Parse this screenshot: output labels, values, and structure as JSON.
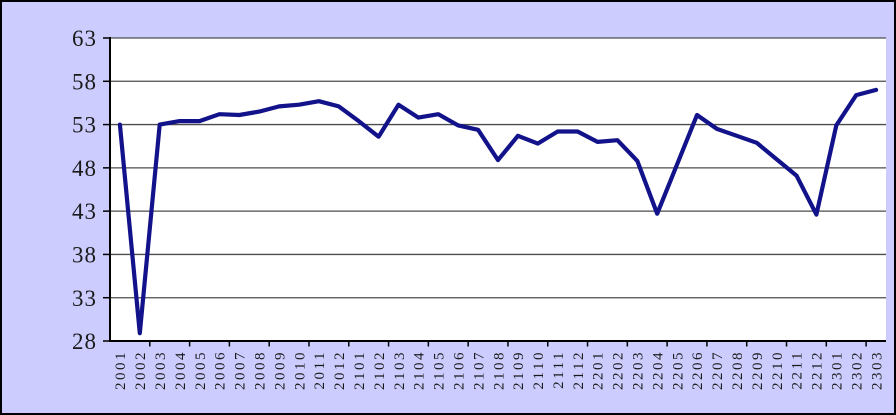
{
  "frame": {
    "background_color": "#CCCCFF",
    "border_color": "#000000"
  },
  "chart_data": {
    "type": "line",
    "title": "",
    "xlabel": "",
    "ylabel": "",
    "categories": [
      "2001",
      "2002",
      "2003",
      "2004",
      "2005",
      "2006",
      "2007",
      "2008",
      "2009",
      "2010",
      "2011",
      "2012",
      "2101",
      "2102",
      "2103",
      "2104",
      "2105",
      "2106",
      "2107",
      "2108",
      "2109",
      "2110",
      "2111",
      "2112",
      "2201",
      "2202",
      "2203",
      "2204",
      "2205",
      "2206",
      "2207",
      "2208",
      "2209",
      "2210",
      "2211",
      "2212",
      "2301",
      "2302",
      "2303"
    ],
    "values": [
      53.0,
      28.9,
      53.0,
      53.4,
      53.4,
      54.2,
      54.1,
      54.5,
      55.1,
      55.3,
      55.7,
      55.1,
      53.4,
      51.6,
      55.3,
      53.8,
      54.2,
      52.9,
      52.4,
      48.9,
      51.7,
      50.8,
      52.2,
      52.2,
      51.0,
      51.2,
      48.8,
      42.7,
      48.4,
      54.1,
      52.5,
      51.7,
      50.9,
      49.0,
      47.1,
      42.6,
      52.9,
      56.4,
      57.0
    ],
    "ylim": [
      28,
      63
    ],
    "yticks": [
      28,
      33,
      38,
      43,
      48,
      53,
      58,
      63
    ],
    "x_tick_mark_interval": 2,
    "grid": true,
    "legend": false,
    "style": {
      "background": "#CCCCFF",
      "plot_background": "#FFFFFF",
      "line_color": "#12128A",
      "line_width": 4.2,
      "gridline_color": "#4D4D4D",
      "axis_color": "#000000",
      "tick_label_color": "#1A1A1A"
    }
  }
}
